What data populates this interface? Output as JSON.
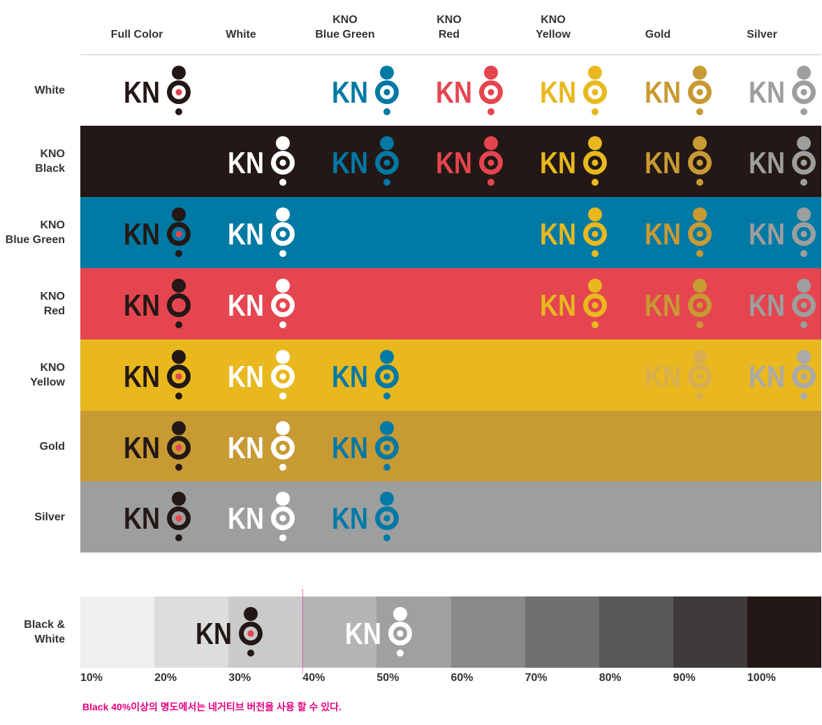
{
  "columns": [
    {
      "line1": "",
      "line2": "Full Color"
    },
    {
      "line1": "",
      "line2": "White"
    },
    {
      "line1": "KNO",
      "line2": "Blue Green"
    },
    {
      "line1": "KNO",
      "line2": "Red"
    },
    {
      "line1": "KNO",
      "line2": "Yellow"
    },
    {
      "line1": "",
      "line2": "Gold"
    },
    {
      "line1": "",
      "line2": "Silver"
    }
  ],
  "logo_text": "KNO",
  "colors": {
    "white": "#ffffff",
    "black": "#231815",
    "blue_green": "#0079a5",
    "red": "#e5454f",
    "yellow": "#e8b81e",
    "gold": "#c89a33",
    "silver": "#9d9e9e",
    "light_gold": "#d8ad52",
    "light_silver": "#aaaaaa"
  },
  "rows": [
    {
      "line1": "",
      "line2": "White",
      "bg": "#ffffff",
      "logos": [
        "full",
        "none",
        "#0079a5",
        "#e5454f",
        "#e8b81e",
        "#c89a33",
        "#9d9e9e"
      ]
    },
    {
      "line1": "KNO",
      "line2": "Black",
      "bg": "#231815",
      "logos": [
        "none",
        "#ffffff",
        "#0079a5",
        "#e5454f",
        "#e8b81e",
        "#c89a33",
        "#9d9e9e"
      ]
    },
    {
      "line1": "KNO",
      "line2": "Blue Green",
      "bg": "#0079a5",
      "logos": [
        "full",
        "#ffffff",
        "none",
        "none",
        "#e8b81e",
        "#c89a33",
        "#9d9e9e"
      ]
    },
    {
      "line1": "KNO",
      "line2": "Red",
      "bg": "#e5454f",
      "logos": [
        "full",
        "#ffffff",
        "none",
        "none",
        "#e8b81e",
        "#c89a33",
        "#9d9e9e"
      ]
    },
    {
      "line1": "KNO",
      "line2": "Yellow",
      "bg": "#e8b81e",
      "logos": [
        "full",
        "#ffffff",
        "#0079a5",
        "none",
        "none",
        "#d8ad52",
        "#aaaaaa"
      ]
    },
    {
      "line1": "",
      "line2": "Gold",
      "bg": "#c89a33",
      "logos": [
        "full",
        "#ffffff",
        "#0079a5",
        "none",
        "none",
        "none",
        "none"
      ]
    },
    {
      "line1": "",
      "line2": "Silver",
      "bg": "#9d9e9e",
      "logos": [
        "full",
        "#ffffff",
        "#0079a5",
        "none",
        "none",
        "none",
        "none"
      ]
    }
  ],
  "bw": {
    "label_line1": "Black &",
    "label_line2": "White",
    "swatches": [
      "#efefef",
      "#dcdddd",
      "#c9caca",
      "#b5b5b6",
      "#9fa0a0",
      "#898989",
      "#717071",
      "#595757",
      "#3e3a39",
      "#231815"
    ],
    "percents": [
      "10%",
      "20%",
      "30%",
      "40%",
      "50%",
      "60%",
      "70%",
      "80%",
      "90%",
      "100%"
    ],
    "logo_dark": "full",
    "logo_light": "#ffffff"
  },
  "note": "Black 40%이상의 명도에서는 네거티브 버전을 사용 할 수 있다."
}
